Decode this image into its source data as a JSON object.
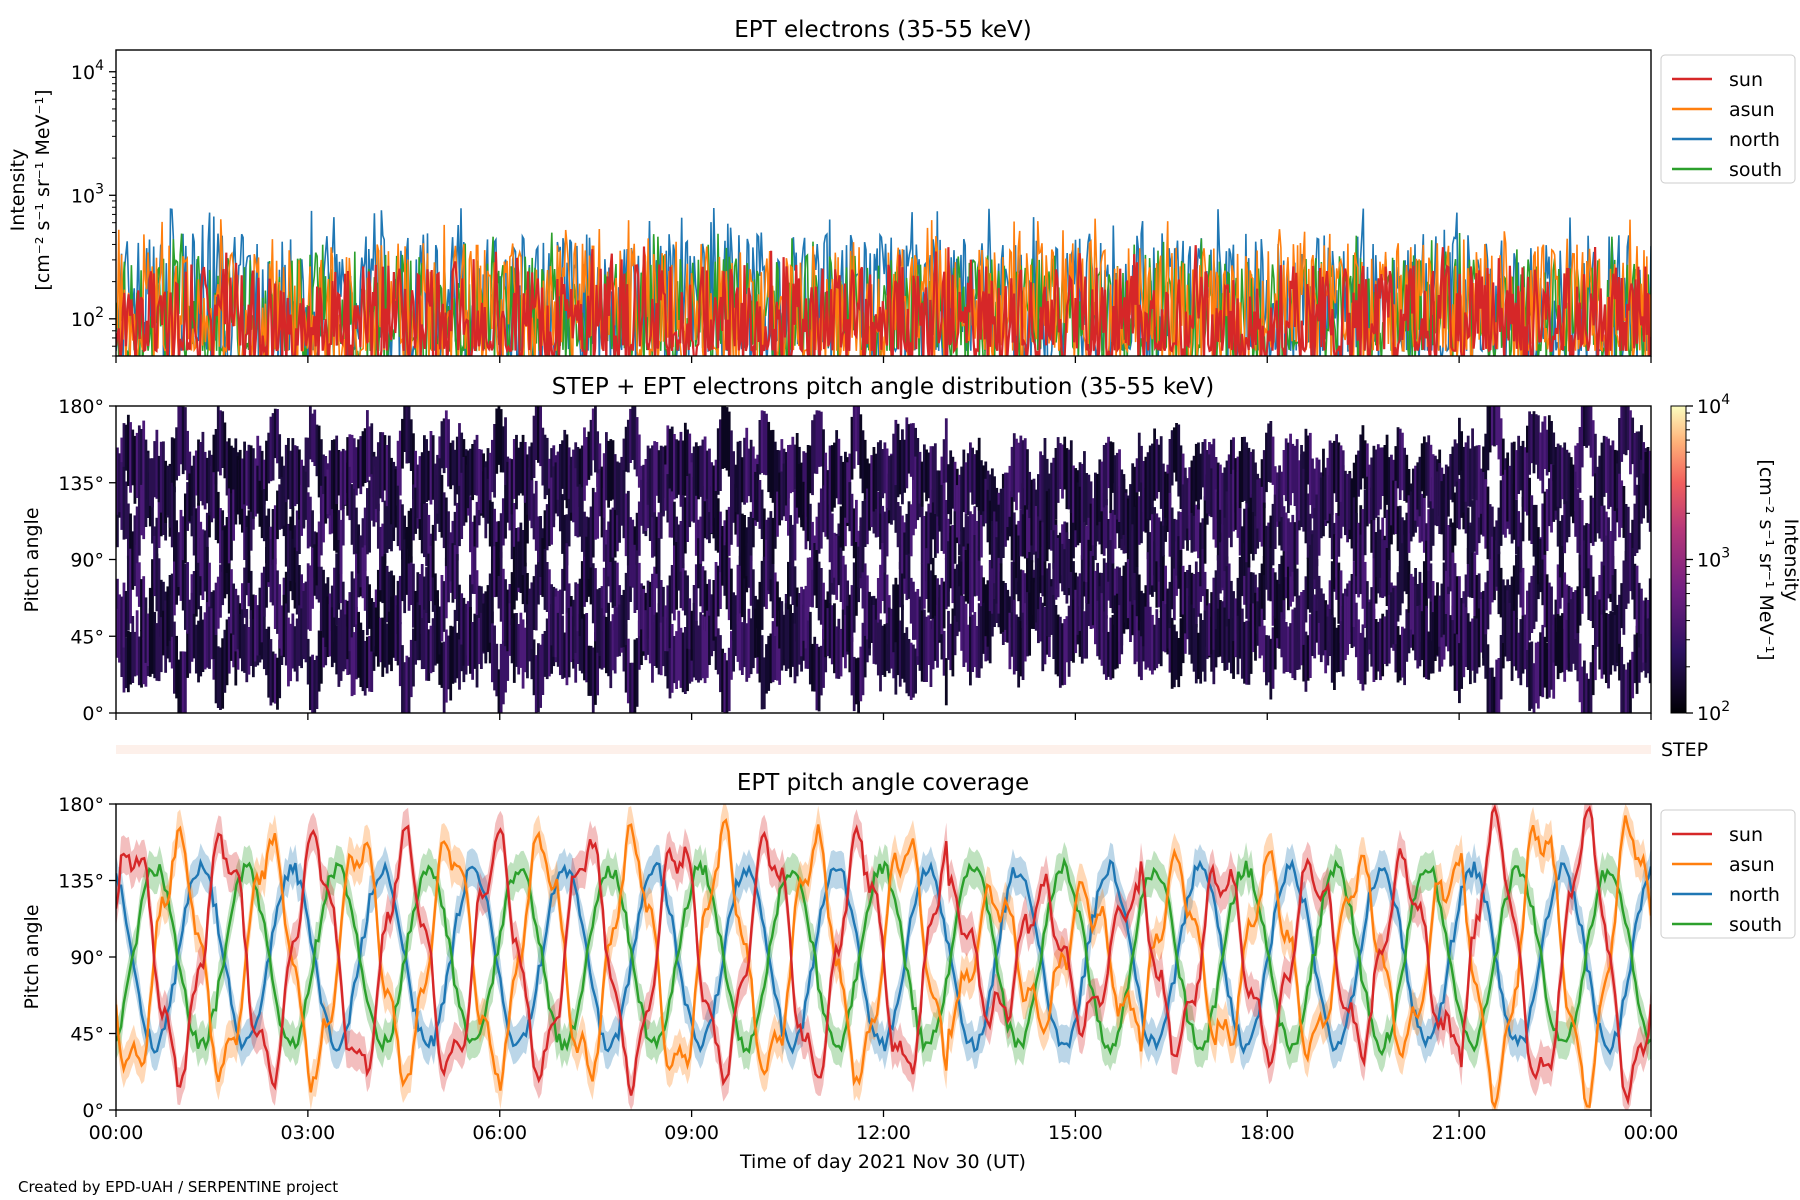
{
  "footer": "Created by EPD-UAH / SERPENTINE project",
  "chart_data": [
    {
      "type": "line",
      "title": "EPT electrons (35-55 keV)",
      "ylabel_lines": [
        "Intensity",
        "[cm⁻² s⁻¹ sr⁻¹ MeV⁻¹]"
      ],
      "yscale": "log",
      "ylim": [
        50,
        15000
      ],
      "yticks": [
        {
          "base": "10",
          "exp": "2"
        },
        {
          "base": "10",
          "exp": "3"
        },
        {
          "base": "10",
          "exp": "4"
        }
      ],
      "legend_position": "outside-right",
      "series": [
        {
          "name": "sun",
          "color": "#d62728",
          "typical_range": [
            50,
            400
          ]
        },
        {
          "name": "asun",
          "color": "#ff7f0e",
          "typical_range": [
            50,
            650
          ]
        },
        {
          "name": "north",
          "color": "#1f77b4",
          "typical_range": [
            50,
            800
          ]
        },
        {
          "name": "south",
          "color": "#2ca02c",
          "typical_range": [
            50,
            500
          ]
        }
      ]
    },
    {
      "type": "heatmap",
      "title": "STEP + EPT electrons pitch angle distribution (35-55 keV)",
      "ylabel": "Pitch angle",
      "ylim": [
        0,
        180
      ],
      "yticks": [
        "0°",
        "45°",
        "90°",
        "135°",
        "180°"
      ],
      "colorbar": {
        "label_lines": [
          "Intensity",
          "[cm⁻² s⁻¹ sr⁻¹ MeV⁻¹]"
        ],
        "scale": "log",
        "range": [
          100,
          10000
        ],
        "ticks": [
          {
            "base": "10",
            "exp": "2"
          },
          {
            "base": "10",
            "exp": "3"
          },
          {
            "base": "10",
            "exp": "4"
          }
        ]
      }
    },
    {
      "type": "bar",
      "label": "STEP",
      "color": "#fdf0ea"
    },
    {
      "type": "line",
      "title": "EPT pitch angle coverage",
      "ylabel": "Pitch angle",
      "ylim": [
        0,
        180
      ],
      "yticks": [
        "0°",
        "45°",
        "90°",
        "135°",
        "180°"
      ],
      "xlabel": "Time of day 2021 Nov 30 (UT)",
      "xticks": [
        "00:00",
        "03:00",
        "06:00",
        "09:00",
        "12:00",
        "15:00",
        "18:00",
        "21:00",
        "00:00"
      ],
      "legend_position": "outside-right",
      "series": [
        {
          "name": "sun",
          "color": "#d62728"
        },
        {
          "name": "asun",
          "color": "#ff7f0e"
        },
        {
          "name": "north",
          "color": "#1f77b4"
        },
        {
          "name": "south",
          "color": "#2ca02c"
        }
      ]
    }
  ]
}
